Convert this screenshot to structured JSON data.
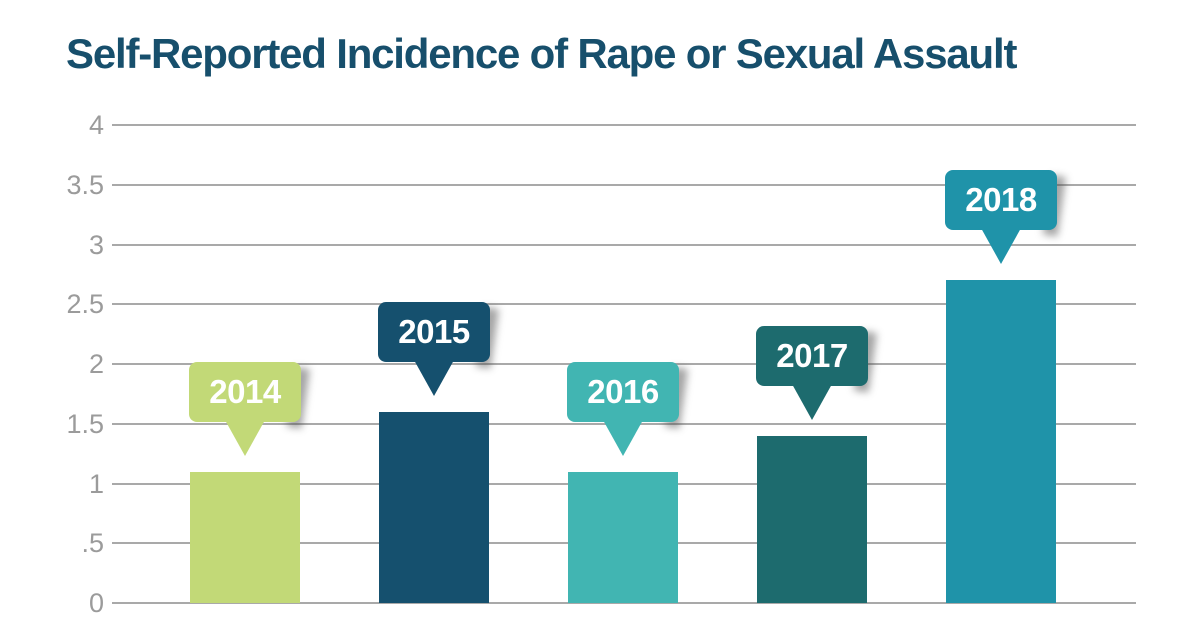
{
  "page": {
    "background": "#ffffff"
  },
  "chart_data": {
    "type": "bar",
    "title": "Self-Reported Incidence of Rape or Sexual Assault",
    "title_color": "#174f6c",
    "categories": [
      "2014",
      "2015",
      "2016",
      "2017",
      "2018"
    ],
    "values": [
      1.1,
      1.6,
      1.1,
      1.4,
      2.7
    ],
    "bar_colors": [
      "#c2d977",
      "#15506e",
      "#41b5b2",
      "#1d6b6e",
      "#1f93a9"
    ],
    "bar_label_style": "speech-bubble callout above each bar with year text",
    "bar_label_text_color": "#ffffff",
    "xlabel": "",
    "ylabel": "",
    "ylim": [
      0,
      4
    ],
    "grid": true,
    "gridline_color": "#a9a9a9",
    "tick_label_color": "#9b9b9b",
    "legend": "none",
    "yticks": [
      {
        "value": 0,
        "label": "0"
      },
      {
        "value": 0.5,
        "label": ".5"
      },
      {
        "value": 1,
        "label": "1"
      },
      {
        "value": 1.5,
        "label": "1.5"
      },
      {
        "value": 2,
        "label": "2"
      },
      {
        "value": 2.5,
        "label": "2.5"
      },
      {
        "value": 3,
        "label": "3"
      },
      {
        "value": 3.5,
        "label": "3.5"
      },
      {
        "value": 4,
        "label": "4"
      }
    ]
  }
}
